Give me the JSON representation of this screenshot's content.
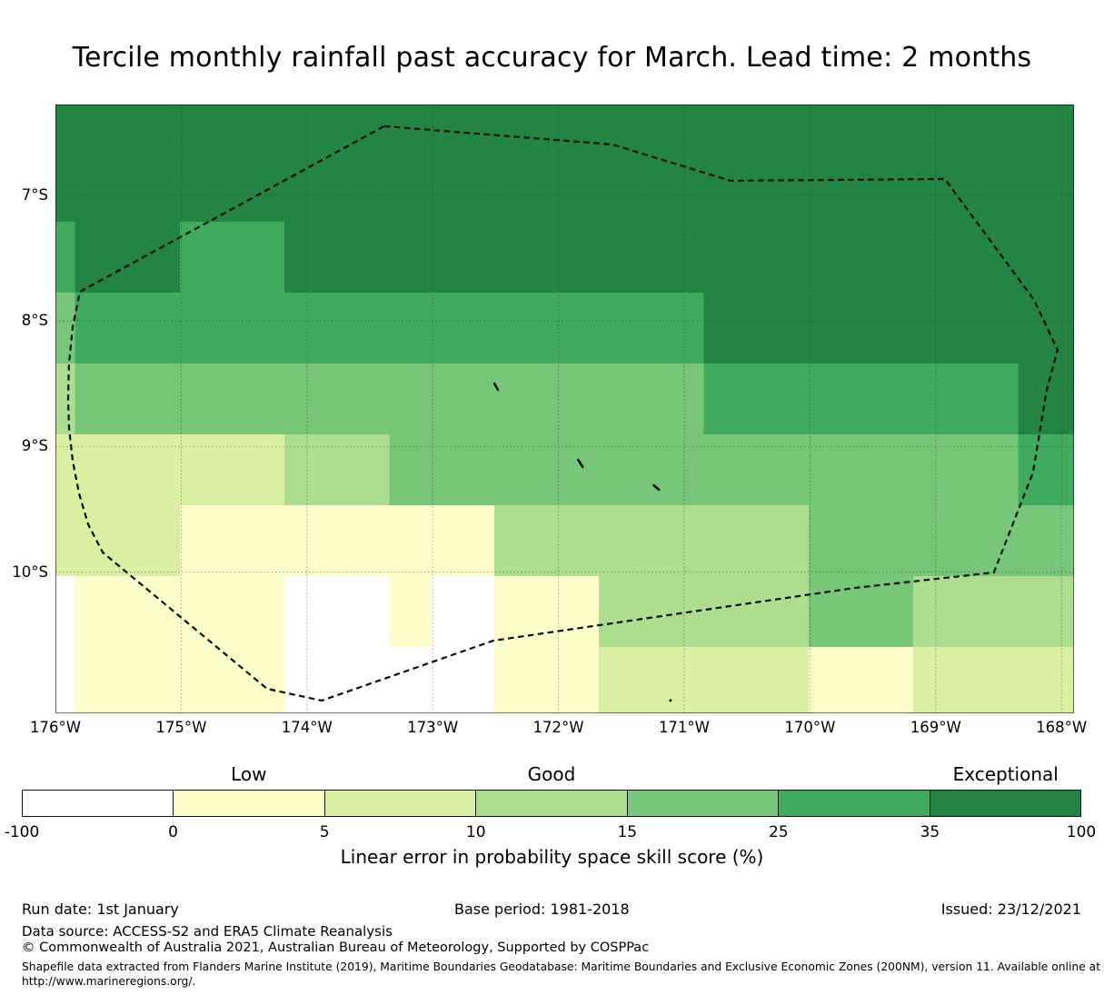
{
  "title": "Tercile monthly rainfall past accuracy for March. Lead time: 2 months",
  "map": {
    "x_tick_labels": [
      "176°W",
      "175°W",
      "174°W",
      "173°W",
      "172°W",
      "171°W",
      "170°W",
      "169°W",
      "168°W"
    ],
    "x_tick_lons": [
      -176,
      -175,
      -174,
      -173,
      -172,
      -171,
      -170,
      -169,
      -168
    ],
    "y_tick_labels": [
      "7°S",
      "8°S",
      "9°S",
      "10°S"
    ],
    "y_tick_lats_south": [
      7,
      8,
      9,
      10
    ],
    "lon_range": [
      -176.0,
      -167.9
    ],
    "lat_range_south": [
      6.277,
      11.124
    ]
  },
  "chart_data": {
    "type": "heatmap",
    "title": "Tercile monthly rainfall past accuracy for March. Lead time: 2 months",
    "xlabel": "Linear error in probability space skill score (%)",
    "value_bins_percent": [
      -100,
      0,
      5,
      10,
      15,
      25,
      35,
      100
    ],
    "bin_class_order": [
      "W",
      "Y1",
      "Y2",
      "G1",
      "G2",
      "G3",
      "G4"
    ],
    "bin_meaning": {
      "W": "-100 to 0",
      "Y1": "0 to 5 (Low)",
      "Y2": "5 to 10",
      "G1": "10 to 15 (Good)",
      "G2": "15 to 25",
      "G3": "25 to 35",
      "G4": "35 to 100 (Exceptional)"
    },
    "class_colors": {
      "W": "#ffffff",
      "Y1": "#ffffcc",
      "Y2": "#d9f0a3",
      "G1": "#addd8e",
      "G2": "#78c679",
      "G3": "#41ab5d",
      "G4": "#238443"
    },
    "col_edges_lon": [
      -176.0,
      -175.844,
      -175.011,
      -174.178,
      -173.344,
      -172.511,
      -171.678,
      -170.844,
      -170.011,
      -169.178,
      -168.344,
      -167.9
    ],
    "row_edges_lat_south": [
      6.277,
      6.645,
      7.209,
      7.774,
      8.338,
      8.903,
      9.467,
      10.031,
      10.596,
      11.124
    ],
    "cells": [
      [
        "G4",
        "G4",
        "G4",
        "G4",
        "G4",
        "G4",
        "G4",
        "G4",
        "G4",
        "G4",
        "G4"
      ],
      [
        "G4",
        "G4",
        "G4",
        "G4",
        "G4",
        "G4",
        "G4",
        "G4",
        "G4",
        "G4",
        "G4"
      ],
      [
        "G3",
        "G4",
        "G3",
        "G4",
        "G4",
        "G4",
        "G4",
        "G4",
        "G4",
        "G4",
        "G4"
      ],
      [
        "G2",
        "G3",
        "G3",
        "G3",
        "G3",
        "G3",
        "G3",
        "G4",
        "G4",
        "G4",
        "G4"
      ],
      [
        "G1",
        "G2",
        "G2",
        "G2",
        "G2",
        "G2",
        "G2",
        "G3",
        "G3",
        "G3",
        "G4"
      ],
      [
        "Y2",
        "Y2",
        "Y2",
        "G1",
        "G2",
        "G2",
        "G2",
        "G2",
        "G2",
        "G2",
        "G3"
      ],
      [
        "Y2",
        "Y2",
        "Y1",
        "Y1",
        "Y1",
        "G1",
        "G1",
        "G1",
        "G2",
        "G2",
        "G2"
      ],
      [
        "W",
        "Y1",
        "Y1",
        "W",
        "Y1",
        "Y1",
        "G1",
        "G1",
        "G2",
        "G1",
        "G1"
      ],
      [
        "W",
        "Y1",
        "Y1",
        "W",
        "W",
        "Y1",
        "Y2",
        "Y2",
        "Y1",
        "Y2",
        "Y2"
      ]
    ],
    "cell_overrides": [
      {
        "lon1": -173.011,
        "lon2": -172.511,
        "lat1_south": 10.031,
        "lat2_south": 10.596,
        "cls": "W"
      }
    ],
    "eez_boundary_lonlat_south": [
      [
        -173.385,
        6.45
      ],
      [
        -171.571,
        6.595
      ],
      [
        -170.632,
        6.884
      ],
      [
        -168.927,
        6.87
      ],
      [
        -168.219,
        7.832
      ],
      [
        -168.031,
        8.23
      ],
      [
        -168.118,
        8.556
      ],
      [
        -168.226,
        9.207
      ],
      [
        -168.537,
        10.003
      ],
      [
        -169.642,
        10.126
      ],
      [
        -172.517,
        10.545
      ],
      [
        -173.883,
        11.023
      ],
      [
        -174.317,
        10.929
      ],
      [
        -175.624,
        9.843
      ],
      [
        -175.74,
        9.619
      ],
      [
        -175.812,
        9.373
      ],
      [
        -175.863,
        9.113
      ],
      [
        -175.892,
        8.845
      ],
      [
        -175.899,
        8.628
      ],
      [
        -175.892,
        8.338
      ],
      [
        -175.863,
        8.049
      ],
      [
        -175.805,
        7.767
      ]
    ],
    "islands": {
      "atafu": [
        [
          -172.51,
          8.498
        ],
        [
          -172.481,
          8.549
        ]
      ],
      "nukunonu": [
        [
          -171.843,
          9.106
        ],
        [
          -171.807,
          9.163
        ]
      ],
      "fakaofo": [
        [
          -171.243,
          9.308
        ],
        [
          -171.2,
          9.344
        ]
      ],
      "swains": [
        [
          -171.109,
          11.022
        ]
      ]
    }
  },
  "colorbar": {
    "tick_labels": [
      "-100",
      "0",
      "5",
      "10",
      "15",
      "25",
      "35",
      "100"
    ],
    "segment_colors": [
      "#ffffff",
      "#ffffcc",
      "#d9f0a3",
      "#addd8e",
      "#78c679",
      "#41ab5d",
      "#238443"
    ],
    "category_labels": [
      {
        "label": "Low",
        "segment": 1
      },
      {
        "label": "Good",
        "segment": 3
      },
      {
        "label": "Exceptional",
        "segment": 6
      }
    ],
    "axis_label": "Linear error in probability space skill score (%)"
  },
  "footer": {
    "run_date": "Run date: 1st January",
    "base_period": "Base period: 1981-2018",
    "issued": "Issued: 23/12/2021",
    "data_source": "Data source: ACCESS-S2 and ERA5 Climate Reanalysis",
    "copyright": "© Commonwealth of Australia 2021, Australian Bureau of Meteorology, Supported by COSPPac",
    "shapefile_note": "Shapefile data extracted from Flanders Marine Institute (2019), Maritime Boundaries Geodatabase: Maritime Boundaries and Exclusive Economic Zones (200NM), version 11. Available online at",
    "shapefile_url": "http://www.marineregions.org/."
  }
}
